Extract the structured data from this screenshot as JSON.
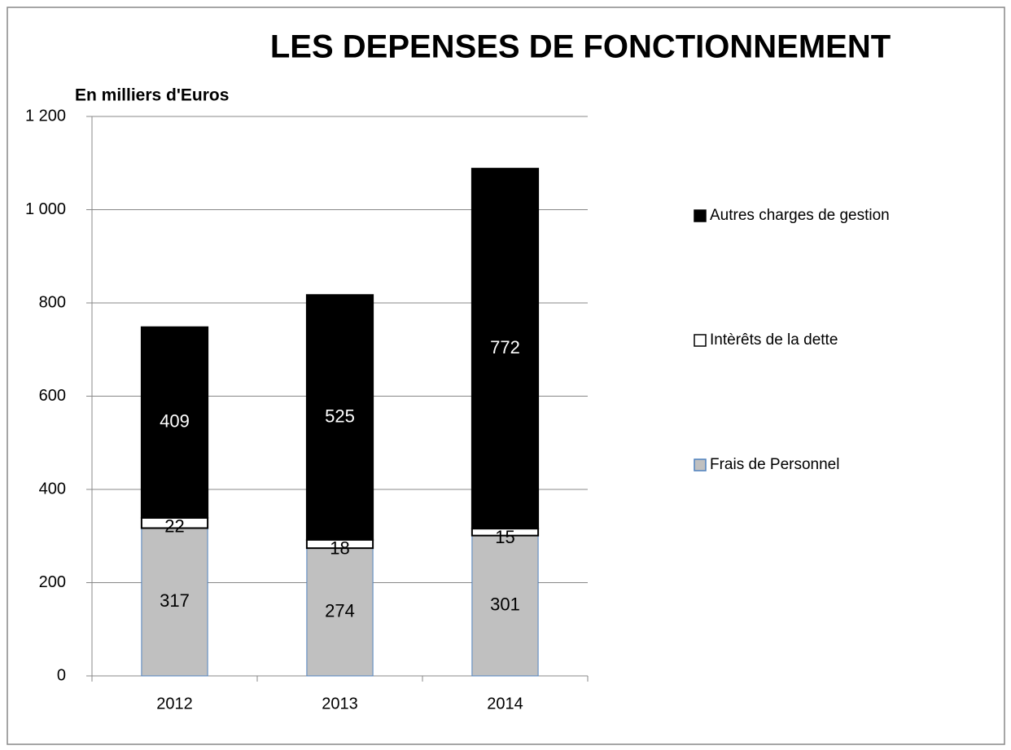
{
  "chart_data": {
    "type": "stacked_bar",
    "title": "LES DEPENSES DE FONCTIONNEMENT",
    "y_label": "En milliers d'Euros",
    "categories": [
      "2012",
      "2013",
      "2014"
    ],
    "series": [
      {
        "name": "Frais de Personnel",
        "color": "#c0c0c0",
        "values": [
          317,
          274,
          301
        ]
      },
      {
        "name": "Intèrêts de la dette",
        "color": "#ffffff",
        "values": [
          22,
          18,
          15
        ]
      },
      {
        "name": "Autres charges de gestion",
        "color": "#000000",
        "values": [
          409,
          525,
          772
        ]
      }
    ],
    "ylim": [
      0,
      1200
    ],
    "yticks": [
      0,
      200,
      400,
      600,
      800,
      {
        "value": 1000,
        "label": "1 000"
      },
      {
        "value": 1200,
        "label": "1 200"
      }
    ],
    "grid": true,
    "legend": "right"
  }
}
